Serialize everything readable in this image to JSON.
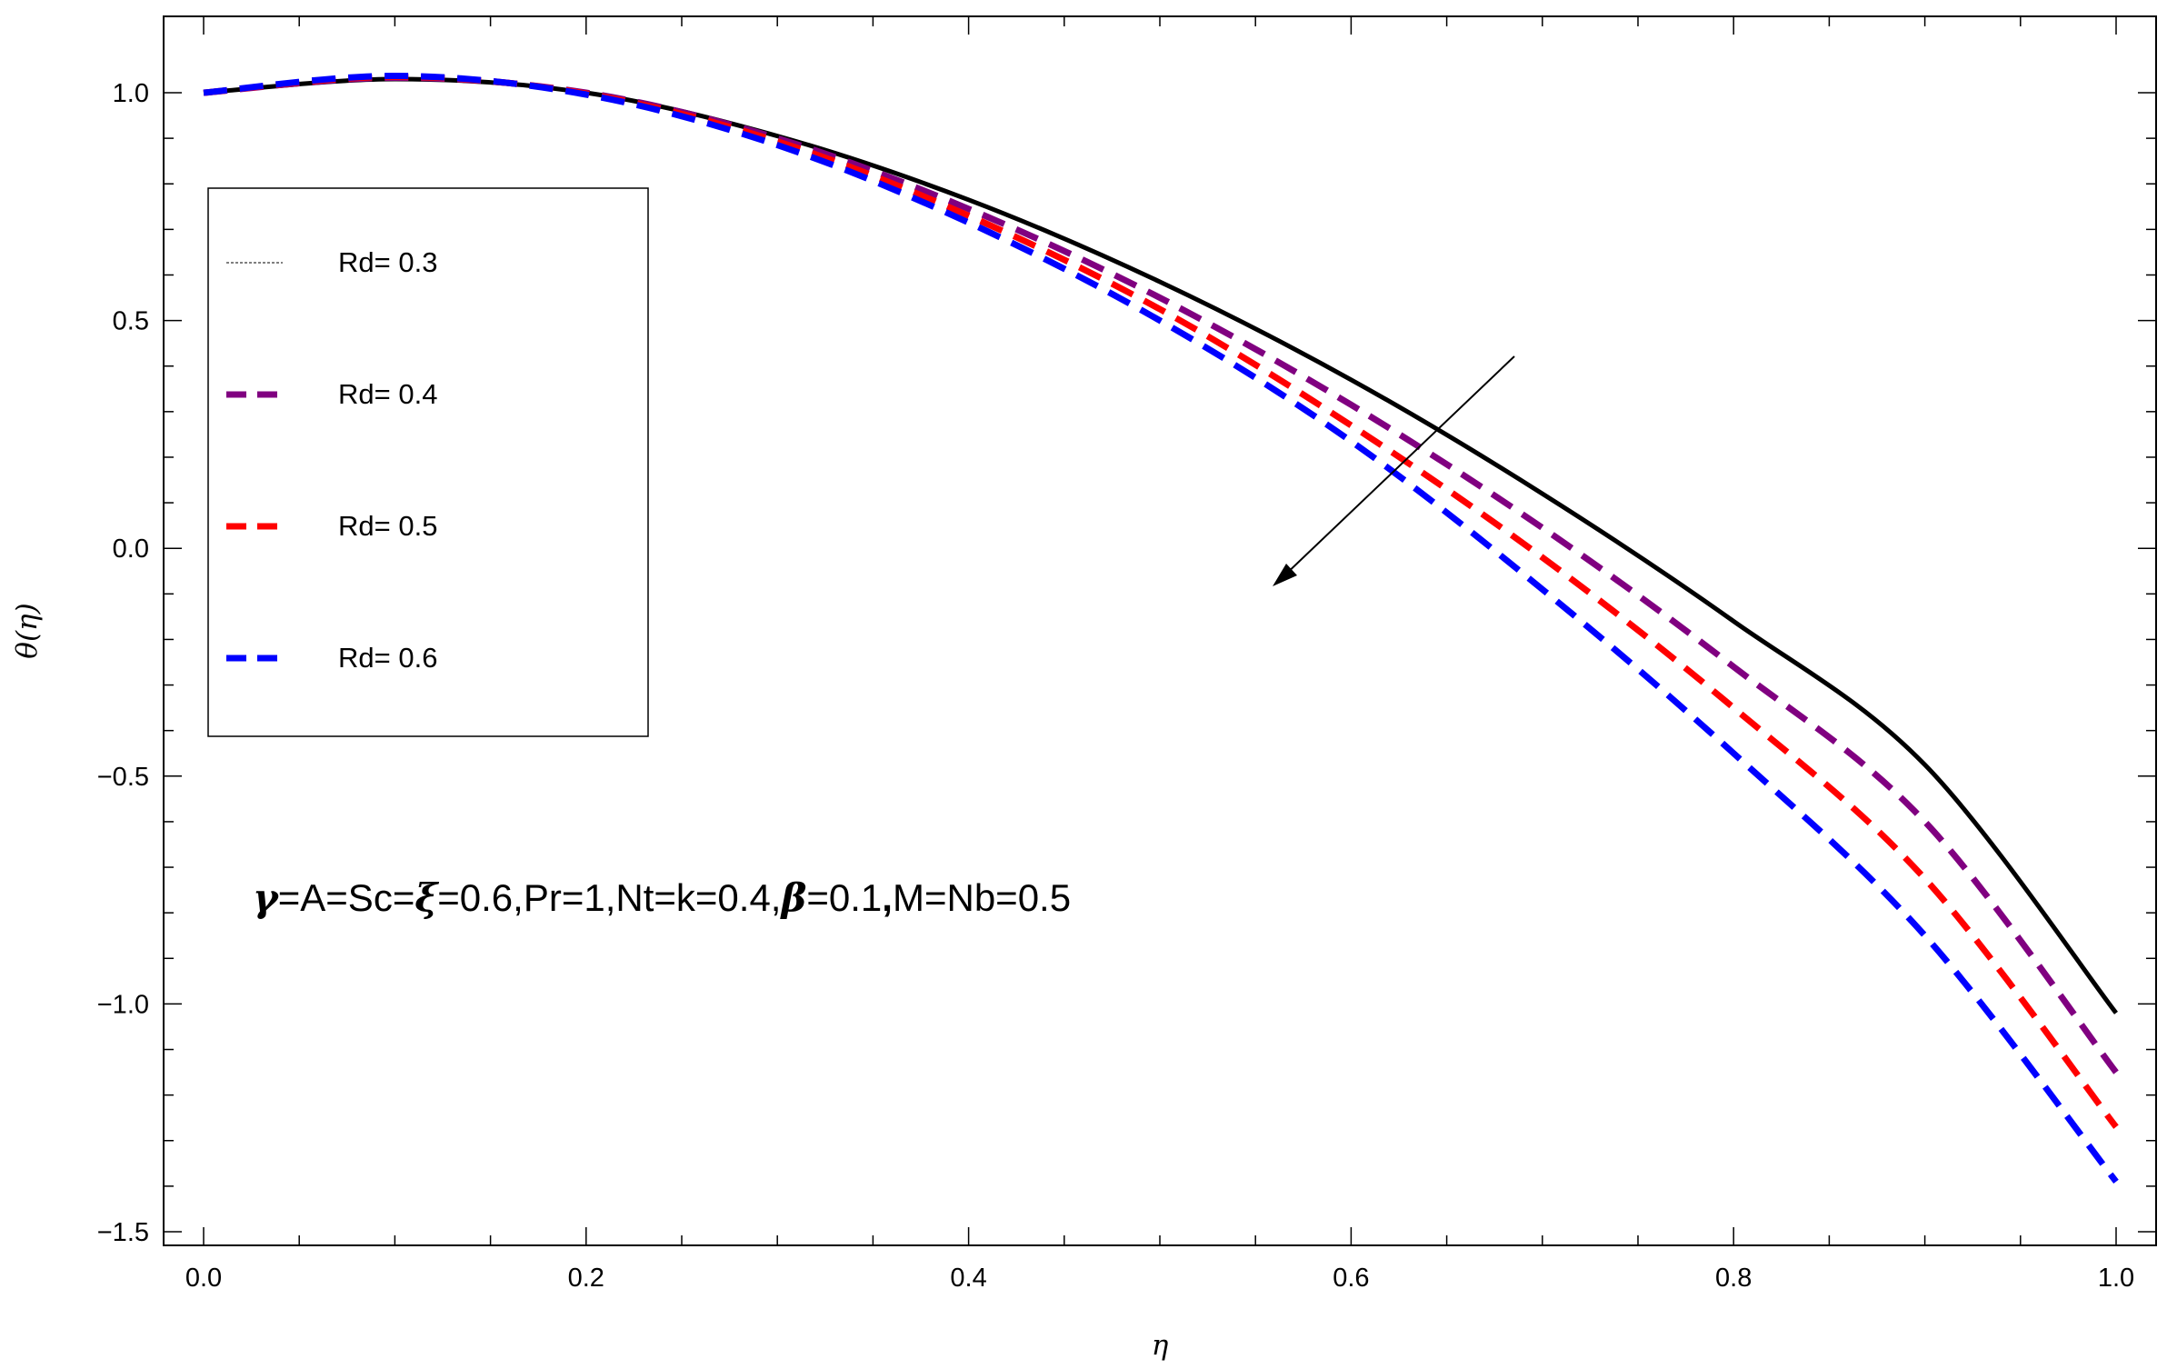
{
  "chart_data": {
    "type": "line",
    "xlabel": "η",
    "ylabel": "θ(η)",
    "xlim": [
      0,
      1
    ],
    "ylim": [
      -1.5,
      1.1
    ],
    "x_ticks": [
      "0.0",
      "0.2",
      "0.4",
      "0.6",
      "0.8",
      "1.0"
    ],
    "y_ticks": [
      "1.0",
      "0.5",
      "0.0",
      "−0.5",
      "−1.0",
      "−1.5"
    ],
    "legend_position": "top-left",
    "annotation": {
      "text_parts": [
        "γ",
        "=A=Sc=",
        "ξ",
        "=0.6,Pr=1,Nt=k=0.4,",
        "β",
        "=0.1",
        ",",
        "M=Nb=0.5"
      ]
    },
    "arrow": {
      "direction": "toward increasing Rd (downward-left)"
    },
    "series": [
      {
        "name": "Rd= 0.3",
        "color": "#000000",
        "style": "solid",
        "x": [
          0,
          0.1,
          0.2,
          0.3,
          0.4,
          0.5,
          0.6,
          0.7,
          0.8,
          0.9,
          1.0
        ],
        "y": [
          1.0,
          1.03,
          1.0,
          0.905,
          0.765,
          0.585,
          0.37,
          0.12,
          -0.16,
          -0.475,
          -1.02
        ]
      },
      {
        "name": "Rd= 0.4",
        "color": "#800080",
        "style": "dashed",
        "x": [
          0,
          0.1,
          0.2,
          0.3,
          0.4,
          0.5,
          0.6,
          0.7,
          0.8,
          0.9,
          1.0
        ],
        "y": [
          1.0,
          1.033,
          1.0,
          0.9,
          0.745,
          0.55,
          0.315,
          0.045,
          -0.26,
          -0.6,
          -1.15
        ]
      },
      {
        "name": "Rd= 0.5",
        "color": "#ff0000",
        "style": "dashed",
        "x": [
          0,
          0.1,
          0.2,
          0.3,
          0.4,
          0.5,
          0.6,
          0.7,
          0.8,
          0.9,
          1.0
        ],
        "y": [
          1.0,
          1.035,
          0.998,
          0.893,
          0.73,
          0.525,
          0.27,
          -0.02,
          -0.35,
          -0.725,
          -1.27
        ]
      },
      {
        "name": "Rd= 0.6",
        "color": "#0000ff",
        "style": "dashed",
        "x": [
          0,
          0.1,
          0.2,
          0.3,
          0.4,
          0.5,
          0.6,
          0.7,
          0.8,
          0.9,
          1.0
        ],
        "y": [
          1.0,
          1.037,
          0.996,
          0.885,
          0.715,
          0.5,
          0.235,
          -0.09,
          -0.45,
          -0.85,
          -1.39
        ]
      }
    ]
  }
}
